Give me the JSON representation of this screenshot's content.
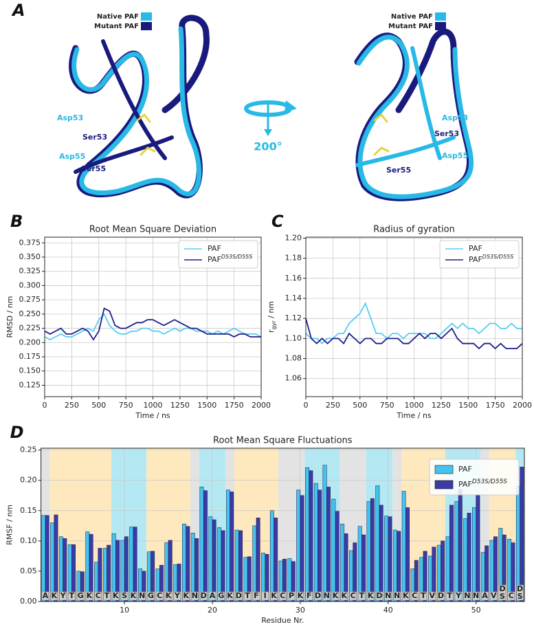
{
  "panel_a": {
    "label": "A",
    "legend": [
      "Native PAF",
      "Mutant PAF"
    ],
    "rotation": "200°",
    "residue_labels": [
      "Asp53",
      "Ser53",
      "Asp55",
      "Ser55"
    ]
  },
  "chart_data": [
    {
      "type": "line",
      "panel_label": "B",
      "title": "Root Mean Square Deviation",
      "x_label": "Time / ns",
      "y_label": "RMSD / nm",
      "x": [
        0,
        50,
        100,
        150,
        200,
        250,
        300,
        350,
        400,
        450,
        500,
        550,
        600,
        650,
        700,
        750,
        800,
        850,
        900,
        950,
        1000,
        1050,
        1100,
        1150,
        1200,
        1250,
        1300,
        1350,
        1400,
        1450,
        1500,
        1550,
        1600,
        1650,
        1700,
        1750,
        1800,
        1850,
        1900,
        1950,
        2000
      ],
      "xlim": [
        0,
        2000
      ],
      "xticks": [
        0,
        250,
        500,
        750,
        1000,
        1250,
        1500,
        1750,
        2000
      ],
      "ylim": [
        0.105,
        0.385
      ],
      "yticks": [
        0.125,
        {
          "value": 0.15,
          "label": "0.150"
        },
        0.175,
        {
          "value": 0.2,
          "label": "0.200"
        },
        0.225,
        {
          "value": 0.25,
          "label": "0.250"
        },
        0.275,
        {
          "value": 0.3,
          "label": "0.300"
        },
        0.325,
        {
          "value": 0.35,
          "label": "0.350"
        },
        0.375
      ],
      "grid": true,
      "series": [
        {
          "name": "PAF",
          "color": "#55cdf0",
          "values": [
            0.21,
            0.205,
            0.21,
            0.215,
            0.21,
            0.21,
            0.215,
            0.22,
            0.225,
            0.22,
            0.24,
            0.25,
            0.23,
            0.22,
            0.215,
            0.215,
            0.22,
            0.22,
            0.225,
            0.225,
            0.22,
            0.22,
            0.215,
            0.22,
            0.225,
            0.22,
            0.225,
            0.225,
            0.22,
            0.22,
            0.22,
            0.215,
            0.22,
            0.215,
            0.22,
            0.225,
            0.22,
            0.215,
            0.215,
            0.215,
            0.21
          ]
        },
        {
          "name": "PAF",
          "superscript": "D53S/D55S",
          "color": "#1c1c8a",
          "values": [
            0.22,
            0.215,
            0.22,
            0.225,
            0.215,
            0.215,
            0.22,
            0.225,
            0.22,
            0.205,
            0.22,
            0.26,
            0.255,
            0.23,
            0.225,
            0.225,
            0.23,
            0.235,
            0.235,
            0.24,
            0.24,
            0.235,
            0.23,
            0.235,
            0.24,
            0.235,
            0.23,
            0.225,
            0.225,
            0.22,
            0.215,
            0.215,
            0.215,
            0.215,
            0.215,
            0.21,
            0.215,
            0.215,
            0.21,
            0.21,
            0.21
          ]
        }
      ]
    },
    {
      "type": "line",
      "panel_label": "C",
      "title": "Radius of gyration",
      "x_label": "Time / ns",
      "y_label": {
        "text": "r",
        "subscript": "gyr",
        "suffix": " / nm"
      },
      "x": [
        0,
        50,
        100,
        150,
        200,
        250,
        300,
        350,
        400,
        450,
        500,
        550,
        600,
        650,
        700,
        750,
        800,
        850,
        900,
        950,
        1000,
        1050,
        1100,
        1150,
        1200,
        1250,
        1300,
        1350,
        1400,
        1450,
        1500,
        1550,
        1600,
        1650,
        1700,
        1750,
        1800,
        1850,
        1900,
        1950,
        2000
      ],
      "xlim": [
        0,
        2000
      ],
      "xticks": [
        0,
        250,
        500,
        750,
        1000,
        1250,
        1500,
        1750,
        2000
      ],
      "ylim": [
        1.042,
        1.201
      ],
      "yticks": [
        1.06,
        1.08,
        {
          "value": 1.1,
          "label": "1.10"
        },
        1.12,
        1.14,
        1.16,
        1.18,
        {
          "value": 1.2,
          "label": "1.20"
        }
      ],
      "grid": true,
      "series": [
        {
          "name": "PAF",
          "color": "#55cdf0",
          "values": [
            1.105,
            1.1,
            1.1,
            1.095,
            1.1,
            1.1,
            1.105,
            1.105,
            1.115,
            1.12,
            1.125,
            1.135,
            1.12,
            1.105,
            1.105,
            1.1,
            1.105,
            1.105,
            1.1,
            1.105,
            1.105,
            1.105,
            1.105,
            1.1,
            1.1,
            1.105,
            1.11,
            1.115,
            1.11,
            1.115,
            1.11,
            1.11,
            1.105,
            1.11,
            1.115,
            1.115,
            1.11,
            1.11,
            1.115,
            1.11,
            1.11
          ]
        },
        {
          "name": "PAF",
          "superscript": "D53S/D55S",
          "color": "#1c1c8a",
          "values": [
            1.12,
            1.1,
            1.095,
            1.1,
            1.095,
            1.1,
            1.1,
            1.095,
            1.105,
            1.1,
            1.095,
            1.1,
            1.1,
            1.095,
            1.095,
            1.1,
            1.1,
            1.1,
            1.095,
            1.095,
            1.1,
            1.105,
            1.1,
            1.105,
            1.105,
            1.1,
            1.105,
            1.11,
            1.1,
            1.095,
            1.095,
            1.095,
            1.09,
            1.095,
            1.095,
            1.09,
            1.095,
            1.09,
            1.09,
            1.09,
            1.095
          ]
        }
      ]
    },
    {
      "type": "bar",
      "panel_label": "D",
      "title": "Root Mean Square Fluctuations",
      "x_label": "Residue Nr.",
      "y_label": "RMSF / nm",
      "x": [
        1,
        2,
        3,
        4,
        5,
        6,
        7,
        8,
        9,
        10,
        11,
        12,
        13,
        14,
        15,
        16,
        17,
        18,
        19,
        20,
        21,
        22,
        23,
        24,
        25,
        26,
        27,
        28,
        29,
        30,
        31,
        32,
        33,
        34,
        35,
        36,
        37,
        38,
        39,
        40,
        41,
        42,
        43,
        44,
        45,
        46,
        47,
        48,
        49,
        50,
        51,
        52,
        53,
        54,
        55
      ],
      "residues": [
        "A",
        "K",
        "Y",
        "T",
        "G",
        "K",
        "C",
        "T",
        "K",
        "S",
        "K",
        "N",
        "G",
        "C",
        "K",
        "Y",
        "K",
        "N",
        "D",
        "A",
        "G",
        "K",
        "D",
        "T",
        "F",
        "I",
        "K",
        "C",
        "P",
        "K",
        "F",
        "D",
        "N",
        "K",
        "K",
        "C",
        "T",
        "K",
        "D",
        "N",
        "N",
        "K",
        "C",
        "T",
        "V",
        "D",
        "T",
        "Y",
        "N",
        "N",
        "A",
        "V",
        "D",
        "C",
        "D"
      ],
      "mutations": [
        {
          "x": 53,
          "label": "S"
        },
        {
          "x": 55,
          "label": "S"
        }
      ],
      "xlim": [
        0.5,
        55.5
      ],
      "xticks": [
        10,
        20,
        30,
        40,
        50
      ],
      "ylim": [
        0,
        0.253
      ],
      "yticks": [
        {
          "value": 0,
          "label": "0.00"
        },
        0.05,
        {
          "value": 0.1,
          "label": "0.10"
        },
        0.15,
        {
          "value": 0.2,
          "label": "0.20"
        },
        0.25
      ],
      "grid": true,
      "legend": "upper right",
      "series": [
        {
          "name": "PAF",
          "color": "#45c3ee",
          "values": [
            0.142,
            0.13,
            0.107,
            0.094,
            0.05,
            0.115,
            0.065,
            0.088,
            0.112,
            0.101,
            0.123,
            0.054,
            0.082,
            0.054,
            0.097,
            0.061,
            0.128,
            0.113,
            0.189,
            0.14,
            0.122,
            0.184,
            0.118,
            0.073,
            0.125,
            0.08,
            0.15,
            0.067,
            0.071,
            0.184,
            0.221,
            0.195,
            0.225,
            0.169,
            0.128,
            0.084,
            0.124,
            0.165,
            0.191,
            0.141,
            0.118,
            0.182,
            0.054,
            0.073,
            0.075,
            0.093,
            0.107,
            0.165,
            0.137,
            0.155,
            0.081,
            0.101,
            0.121,
            0.103,
            0.19
          ]
        },
        {
          "name": "PAF",
          "superscript": "D53S/D55S",
          "color": "#3b3ba8",
          "values": [
            0.142,
            0.143,
            0.104,
            0.094,
            0.049,
            0.111,
            0.088,
            0.093,
            0.101,
            0.107,
            0.123,
            0.05,
            0.083,
            0.06,
            0.101,
            0.062,
            0.124,
            0.104,
            0.183,
            0.135,
            0.117,
            0.181,
            0.117,
            0.074,
            0.138,
            0.078,
            0.138,
            0.07,
            0.066,
            0.175,
            0.216,
            0.184,
            0.189,
            0.149,
            0.112,
            0.097,
            0.11,
            0.17,
            0.159,
            0.14,
            0.116,
            0.155,
            0.068,
            0.083,
            0.09,
            0.1,
            0.159,
            0.185,
            0.146,
            0.175,
            0.092,
            0.107,
            0.11,
            0.097,
            0.222
          ]
        }
      ]
    }
  ]
}
